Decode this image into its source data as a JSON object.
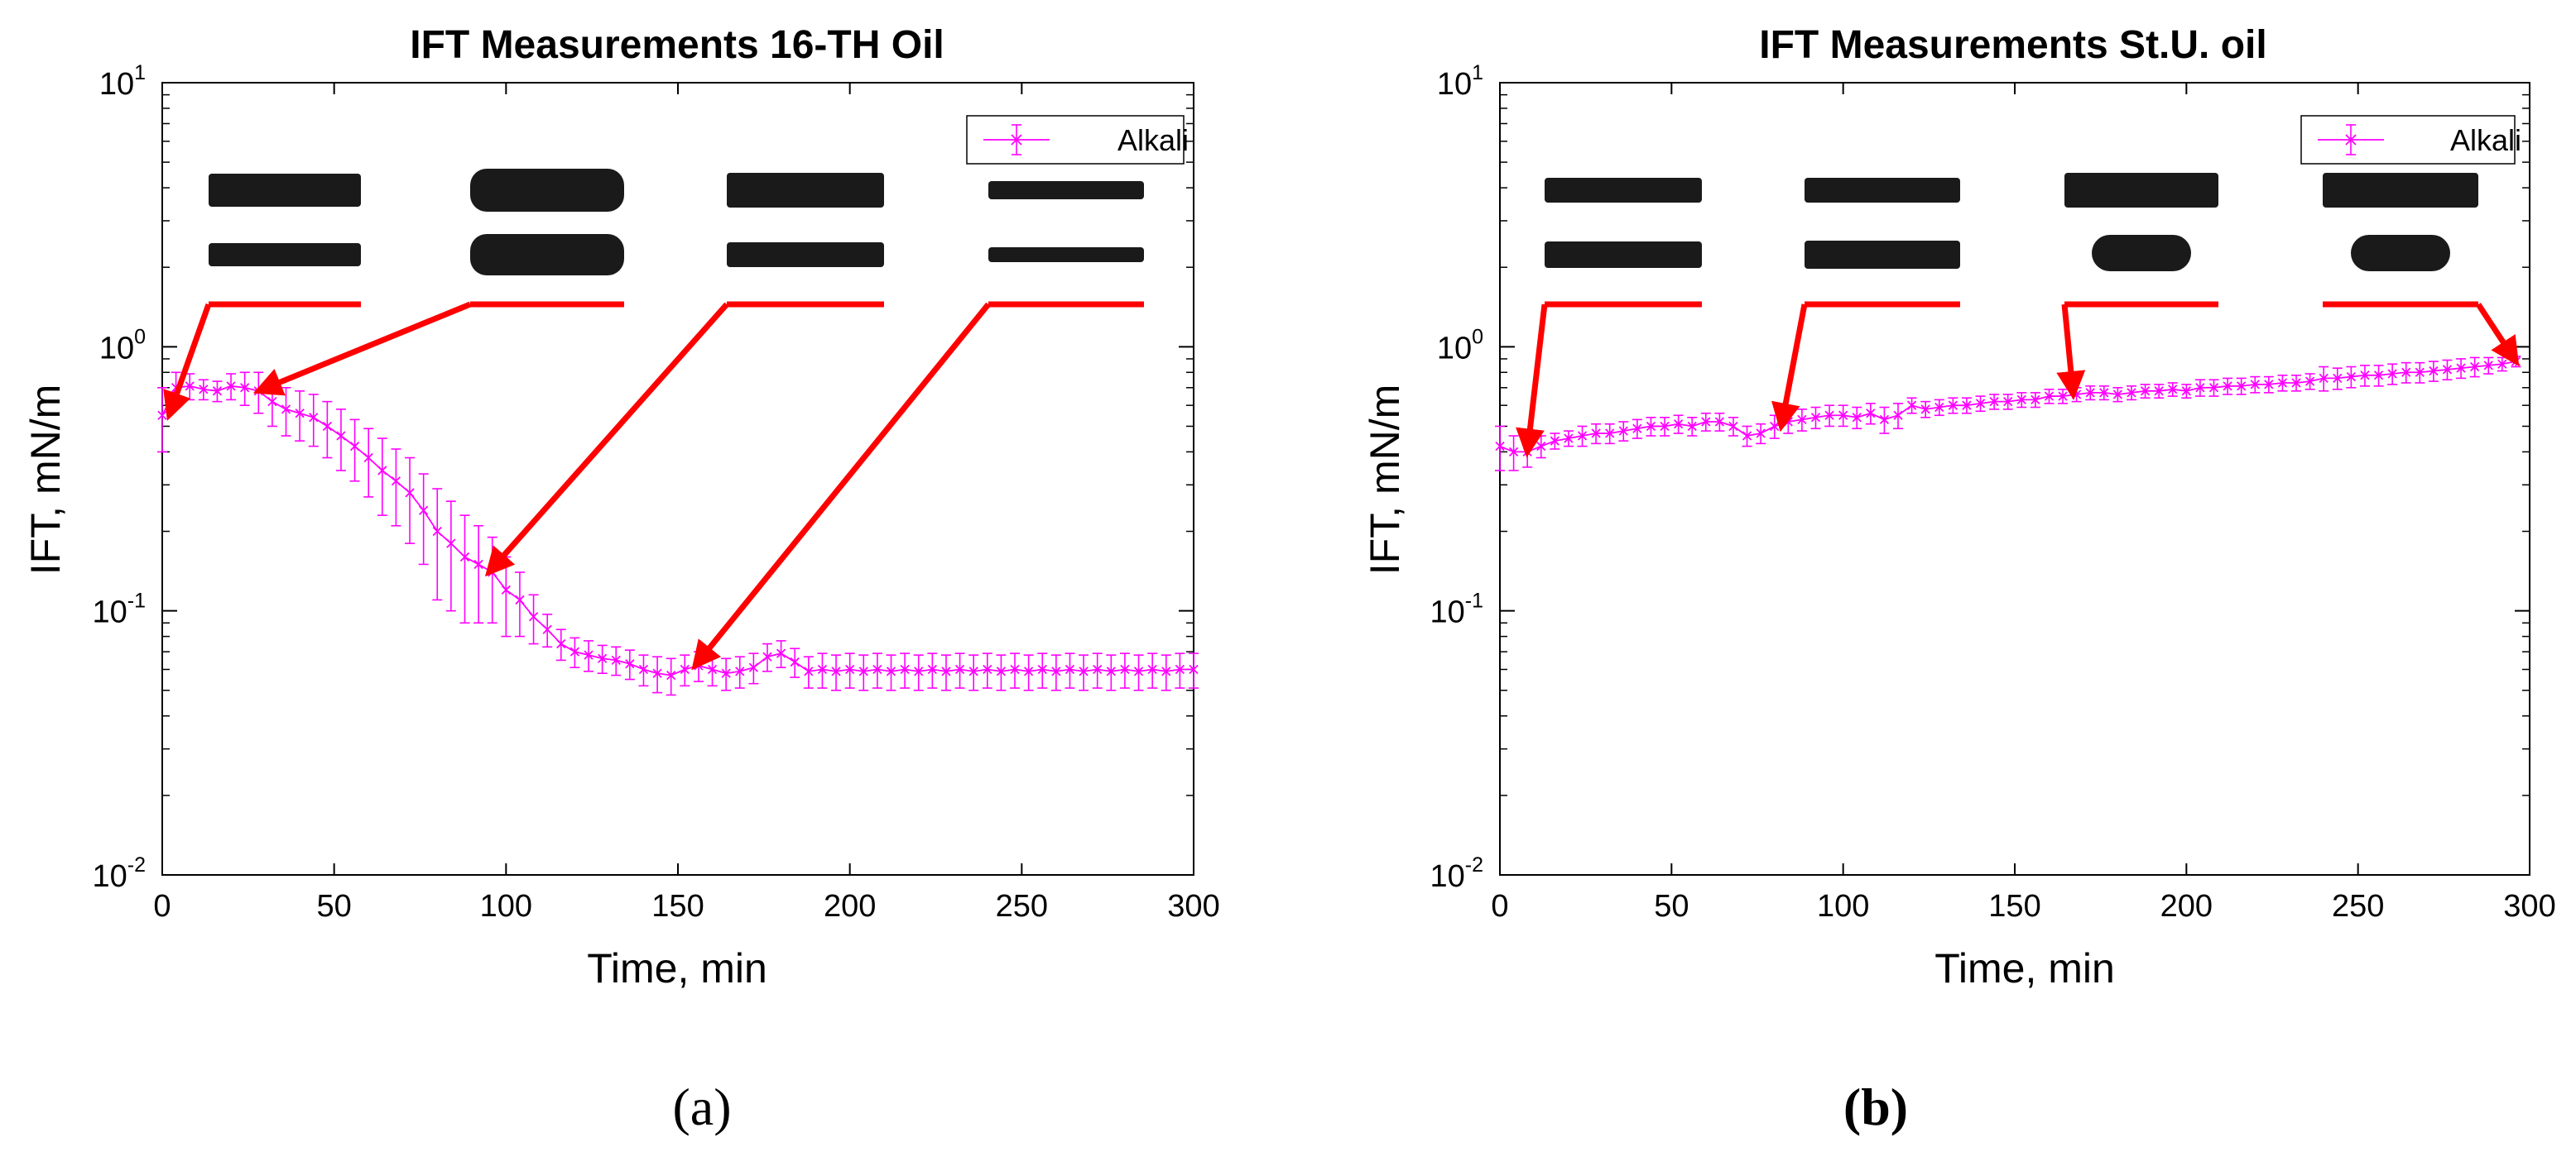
{
  "chart_data": [
    {
      "type": "line",
      "panel": "a",
      "title": "IFT Measurements 16-TH Oil",
      "xlabel": "Time, min",
      "ylabel": "IFT, mN/m",
      "yscale": "log",
      "xlim": [
        0,
        300
      ],
      "ylim": [
        0.01,
        10
      ],
      "xticks": [
        "0",
        "50",
        "100",
        "150",
        "200",
        "250",
        "300"
      ],
      "legend": "Alkali",
      "legend_position": "top-right",
      "color": "#ff00ff",
      "annotation_times": [
        2,
        28,
        95,
        155
      ],
      "series": [
        {
          "name": "Alkali",
          "x": [
            0,
            4,
            8,
            12,
            16,
            20,
            24,
            28,
            32,
            36,
            40,
            44,
            48,
            52,
            56,
            60,
            64,
            68,
            72,
            76,
            80,
            84,
            88,
            92,
            96,
            100,
            104,
            108,
            112,
            116,
            120,
            124,
            128,
            132,
            136,
            140,
            144,
            148,
            152,
            156,
            160,
            164,
            168,
            172,
            176,
            180,
            184,
            188,
            192,
            196,
            200,
            204,
            208,
            212,
            216,
            220,
            224,
            228,
            232,
            236,
            240,
            244,
            248,
            252,
            256,
            260,
            264,
            268,
            272,
            276,
            280,
            284,
            288,
            292,
            296,
            300
          ],
          "y": [
            0.55,
            0.7,
            0.71,
            0.69,
            0.68,
            0.71,
            0.7,
            0.68,
            0.62,
            0.58,
            0.56,
            0.54,
            0.5,
            0.46,
            0.42,
            0.38,
            0.34,
            0.31,
            0.28,
            0.24,
            0.2,
            0.18,
            0.16,
            0.15,
            0.14,
            0.12,
            0.11,
            0.095,
            0.085,
            0.075,
            0.07,
            0.068,
            0.066,
            0.065,
            0.063,
            0.06,
            0.058,
            0.057,
            0.06,
            0.062,
            0.06,
            0.058,
            0.059,
            0.061,
            0.067,
            0.069,
            0.064,
            0.059,
            0.06,
            0.059,
            0.06,
            0.059,
            0.06,
            0.059,
            0.06,
            0.059,
            0.06,
            0.059,
            0.06,
            0.059,
            0.06,
            0.059,
            0.06,
            0.059,
            0.06,
            0.059,
            0.06,
            0.059,
            0.06,
            0.059,
            0.06,
            0.059,
            0.06,
            0.059,
            0.06,
            0.06
          ],
          "err": [
            0.15,
            0.1,
            0.08,
            0.06,
            0.06,
            0.08,
            0.1,
            0.12,
            0.12,
            0.12,
            0.12,
            0.12,
            0.12,
            0.12,
            0.11,
            0.11,
            0.11,
            0.1,
            0.1,
            0.09,
            0.09,
            0.08,
            0.07,
            0.06,
            0.05,
            0.04,
            0.03,
            0.02,
            0.012,
            0.01,
            0.009,
            0.009,
            0.008,
            0.008,
            0.008,
            0.008,
            0.009,
            0.009,
            0.008,
            0.008,
            0.008,
            0.008,
            0.008,
            0.008,
            0.008,
            0.008,
            0.008,
            0.008,
            0.009,
            0.009,
            0.009,
            0.009,
            0.009,
            0.009,
            0.009,
            0.009,
            0.009,
            0.009,
            0.009,
            0.009,
            0.009,
            0.009,
            0.009,
            0.009,
            0.009,
            0.009,
            0.009,
            0.009,
            0.009,
            0.009,
            0.009,
            0.009,
            0.009,
            0.009,
            0.009,
            0.009
          ]
        }
      ]
    },
    {
      "type": "line",
      "panel": "b",
      "title": "IFT Measurements St.U. oil",
      "xlabel": "Time, min",
      "ylabel": "IFT, mN/m",
      "yscale": "log",
      "xlim": [
        0,
        300
      ],
      "ylim": [
        0.01,
        10
      ],
      "xticks": [
        "0",
        "50",
        "100",
        "150",
        "200",
        "250",
        "300"
      ],
      "legend": "Alkali",
      "legend_position": "top-right",
      "color": "#ff00ff",
      "annotation_times": [
        8,
        82,
        167,
        296
      ],
      "series": [
        {
          "name": "Alkali",
          "x": [
            0,
            4,
            8,
            12,
            16,
            20,
            24,
            28,
            32,
            36,
            40,
            44,
            48,
            52,
            56,
            60,
            64,
            68,
            72,
            76,
            80,
            84,
            88,
            92,
            96,
            100,
            104,
            108,
            112,
            116,
            120,
            124,
            128,
            132,
            136,
            140,
            144,
            148,
            152,
            156,
            160,
            164,
            168,
            172,
            176,
            180,
            184,
            188,
            192,
            196,
            200,
            204,
            208,
            212,
            216,
            220,
            224,
            228,
            232,
            236,
            240,
            244,
            248,
            252,
            256,
            260,
            264,
            268,
            272,
            276,
            280,
            284,
            288,
            292,
            296
          ],
          "y": [
            0.42,
            0.4,
            0.4,
            0.42,
            0.44,
            0.45,
            0.46,
            0.47,
            0.47,
            0.48,
            0.49,
            0.5,
            0.5,
            0.51,
            0.5,
            0.52,
            0.52,
            0.5,
            0.46,
            0.47,
            0.5,
            0.52,
            0.53,
            0.54,
            0.55,
            0.55,
            0.54,
            0.56,
            0.53,
            0.55,
            0.6,
            0.58,
            0.59,
            0.6,
            0.6,
            0.61,
            0.62,
            0.62,
            0.63,
            0.63,
            0.65,
            0.65,
            0.66,
            0.67,
            0.67,
            0.66,
            0.67,
            0.68,
            0.68,
            0.69,
            0.68,
            0.7,
            0.7,
            0.71,
            0.71,
            0.72,
            0.72,
            0.73,
            0.73,
            0.74,
            0.76,
            0.76,
            0.77,
            0.78,
            0.78,
            0.79,
            0.8,
            0.8,
            0.81,
            0.82,
            0.83,
            0.84,
            0.85,
            0.86,
            0.88
          ],
          "err": [
            0.08,
            0.06,
            0.05,
            0.04,
            0.03,
            0.03,
            0.04,
            0.04,
            0.04,
            0.04,
            0.04,
            0.04,
            0.04,
            0.04,
            0.04,
            0.04,
            0.04,
            0.04,
            0.04,
            0.04,
            0.05,
            0.05,
            0.05,
            0.05,
            0.05,
            0.05,
            0.05,
            0.05,
            0.06,
            0.06,
            0.04,
            0.04,
            0.04,
            0.04,
            0.04,
            0.04,
            0.04,
            0.04,
            0.04,
            0.04,
            0.04,
            0.04,
            0.04,
            0.04,
            0.04,
            0.04,
            0.04,
            0.04,
            0.04,
            0.04,
            0.04,
            0.05,
            0.05,
            0.05,
            0.05,
            0.05,
            0.05,
            0.05,
            0.05,
            0.05,
            0.08,
            0.07,
            0.07,
            0.07,
            0.07,
            0.07,
            0.07,
            0.07,
            0.07,
            0.07,
            0.07,
            0.07,
            0.06,
            0.05,
            0.04
          ]
        }
      ]
    }
  ],
  "panel_labels": [
    "(a)",
    "(b)"
  ],
  "drop_image_semantics": "droplet-photo"
}
